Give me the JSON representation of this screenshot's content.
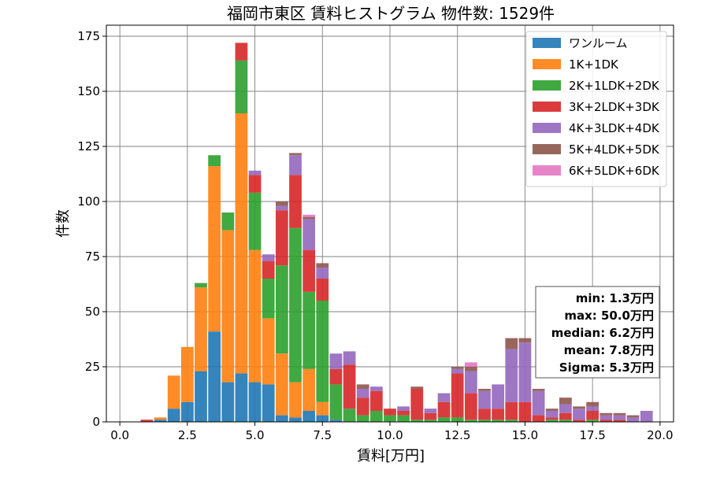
{
  "chart_data": {
    "type": "bar",
    "stacked": true,
    "title": "福岡市東区 賃料ヒストグラム  物件数: 1529件",
    "xlabel": "賃料[万円]",
    "ylabel": "件数",
    "xlim": [
      -0.5,
      20.5
    ],
    "ylim": [
      0,
      180
    ],
    "xticks": [
      0.0,
      2.5,
      5.0,
      7.5,
      10.0,
      12.5,
      15.0,
      17.5,
      20.0
    ],
    "xtick_labels": [
      "0.0",
      "2.5",
      "5.0",
      "7.5",
      "10.0",
      "12.5",
      "15.0",
      "17.5",
      "20.0"
    ],
    "yticks": [
      0,
      25,
      50,
      75,
      100,
      125,
      150,
      175
    ],
    "ytick_labels": [
      "0",
      "25",
      "50",
      "75",
      "100",
      "125",
      "150",
      "175"
    ],
    "grid": true,
    "legend_position": "top-right",
    "bin_width": 0.5,
    "x": [
      1.0,
      1.5,
      2.0,
      2.5,
      3.0,
      3.5,
      4.0,
      4.5,
      5.0,
      5.5,
      6.0,
      6.5,
      7.0,
      7.5,
      8.0,
      8.5,
      9.0,
      9.5,
      10.0,
      10.5,
      11.0,
      11.5,
      12.0,
      12.5,
      13.0,
      13.5,
      14.0,
      14.5,
      15.0,
      15.5,
      16.0,
      16.5,
      17.0,
      17.5,
      18.0,
      18.5,
      19.0,
      19.5
    ],
    "series": [
      {
        "name": "ワンルーム",
        "color": "#1f77b4",
        "values": [
          0,
          1,
          6,
          9,
          23,
          41,
          18,
          22,
          18,
          17,
          3,
          2,
          5,
          3,
          1,
          0,
          0,
          0,
          0,
          0,
          0,
          0,
          0,
          0,
          0,
          0,
          0,
          0,
          0,
          0,
          0,
          0,
          0,
          0,
          0,
          0,
          0,
          0
        ]
      },
      {
        "name": "1K+1DK",
        "color": "#ff7f0e",
        "values": [
          0,
          1,
          15,
          25,
          38,
          75,
          69,
          118,
          60,
          30,
          28,
          16,
          19,
          6,
          0,
          0,
          0,
          0,
          0,
          0,
          0,
          0,
          0,
          0,
          0,
          0,
          0,
          0,
          0,
          0,
          0,
          0,
          0,
          0,
          0,
          0,
          0,
          0
        ]
      },
      {
        "name": "2K+1LDK+2DK",
        "color": "#2ca02c",
        "values": [
          0,
          0,
          0,
          0,
          2,
          5,
          8,
          24,
          26,
          18,
          40,
          70,
          35,
          46,
          16,
          6,
          3,
          5,
          3,
          3,
          1,
          1,
          2,
          2,
          1,
          1,
          1,
          1,
          0,
          0,
          1,
          1,
          0,
          1,
          0,
          0,
          0,
          0
        ]
      },
      {
        "name": "3K+2LDK+3DK",
        "color": "#d62728",
        "values": [
          1,
          0,
          0,
          0,
          0,
          0,
          0,
          8,
          8,
          8,
          25,
          24,
          19,
          10,
          7,
          20,
          8,
          9,
          3,
          2,
          14,
          3,
          7,
          20,
          12,
          5,
          5,
          8,
          9,
          3,
          1,
          3,
          1,
          4,
          1,
          1,
          0,
          0
        ]
      },
      {
        "name": "4K+3LDK+4DK",
        "color": "#9467bd",
        "values": [
          0,
          0,
          0,
          0,
          0,
          0,
          0,
          0,
          2,
          3,
          2,
          9,
          14,
          5,
          7,
          6,
          4,
          2,
          0,
          2,
          0,
          2,
          4,
          2,
          10,
          8,
          11,
          24,
          27,
          11,
          3,
          4,
          5,
          2,
          2,
          2,
          2,
          5
        ]
      },
      {
        "name": "5K+4LDK+5DK",
        "color": "#8c564b",
        "values": [
          0,
          0,
          0,
          0,
          0,
          0,
          0,
          0,
          0,
          0,
          2,
          1,
          1,
          2,
          0,
          0,
          2,
          0,
          0,
          0,
          1,
          0,
          0,
          1,
          2,
          1,
          0,
          5,
          2,
          1,
          1,
          3,
          1,
          2,
          1,
          1,
          1,
          0
        ]
      },
      {
        "name": "6K+5LDK+6DK",
        "color": "#e377c2",
        "values": [
          0,
          0,
          0,
          0,
          0,
          0,
          0,
          0,
          0,
          0,
          0,
          0,
          1,
          0,
          0,
          0,
          0,
          0,
          0,
          0,
          0,
          0,
          0,
          0,
          2,
          0,
          0,
          0,
          0,
          0,
          0,
          0,
          0,
          0,
          0,
          0,
          0,
          0
        ]
      }
    ],
    "stats_box": [
      "min: 1.3万円",
      "max: 50.0万円",
      "median: 6.2万円",
      "mean: 7.8万円",
      "Sigma: 5.3万円"
    ]
  }
}
